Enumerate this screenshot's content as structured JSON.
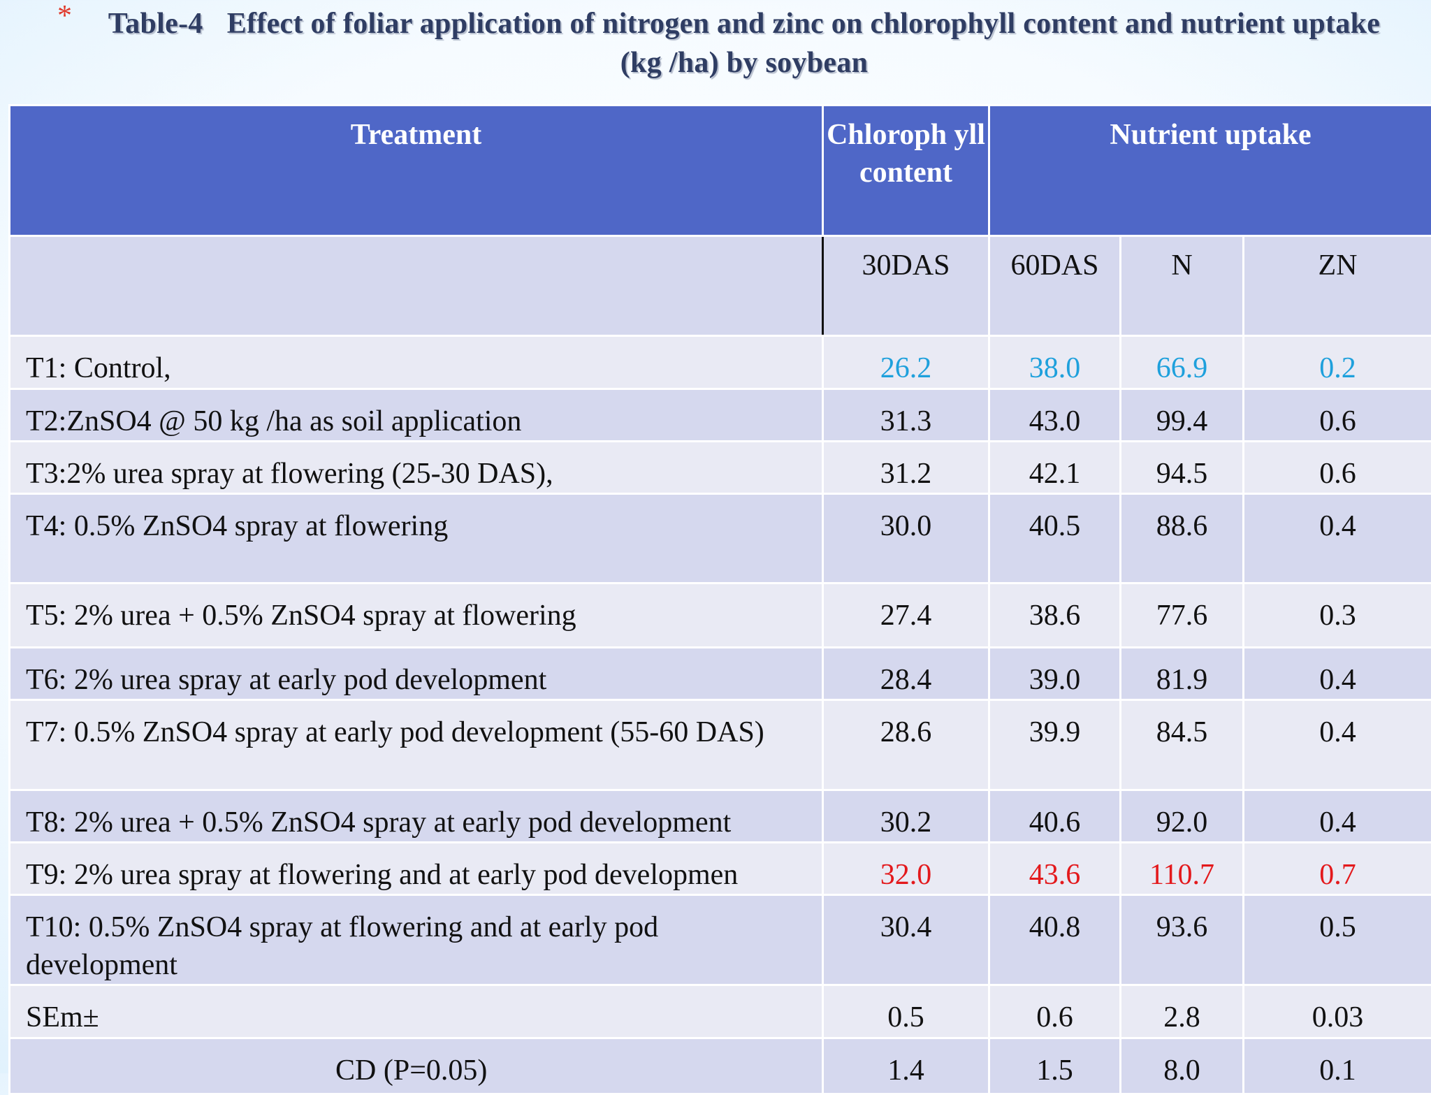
{
  "title": {
    "bullet": "*",
    "number": "Table-4",
    "text": "Effect of foliar application of nitrogen and zinc on chlorophyll content and nutrient uptake (kg /ha) by soybean"
  },
  "header": {
    "treatment": "Treatment",
    "chlorophyll": "Chloroph yll content",
    "nutrient_uptake": "Nutrient uptake",
    "sub": [
      "30DAS",
      "60DAS",
      "N",
      "ZN"
    ]
  },
  "rows": [
    {
      "treatment": "T1: Control,",
      "v": [
        "26.2",
        "38.0",
        "66.9",
        "0.2"
      ]
    },
    {
      "treatment": "T2:ZnSO4 @ 50 kg /ha as soil application",
      "v": [
        "31.3",
        "43.0",
        "99.4",
        "0.6"
      ]
    },
    {
      "treatment": "T3:2% urea spray at flowering (25-30 DAS),",
      "v": [
        "31.2",
        "42.1",
        "94.5",
        "0.6"
      ]
    },
    {
      "treatment": "T4: 0.5% ZnSO4 spray at flowering",
      "v": [
        "30.0",
        "40.5",
        "88.6",
        "0.4"
      ]
    },
    {
      "treatment": "T5: 2% urea + 0.5% ZnSO4 spray at flowering",
      "v": [
        "27.4",
        "38.6",
        "77.6",
        "0.3"
      ]
    },
    {
      "treatment": "T6: 2% urea spray at early pod development",
      "v": [
        "28.4",
        "39.0",
        "81.9",
        "0.4"
      ]
    },
    {
      "treatment": "T7: 0.5% ZnSO4 spray at early pod development (55-60 DAS)",
      "v": [
        "28.6",
        "39.9",
        "84.5",
        "0.4"
      ]
    },
    {
      "treatment": "T8: 2% urea + 0.5% ZnSO4 spray at early pod development",
      "v": [
        "30.2",
        "40.6",
        "92.0",
        "0.4"
      ]
    },
    {
      "treatment": "T9: 2% urea spray at flowering and at early pod developmen",
      "v": [
        "32.0",
        "43.6",
        "110.7",
        "0.7"
      ]
    },
    {
      "treatment": "T10: 0.5% ZnSO4 spray at flowering and at early pod development",
      "v": [
        "30.4",
        "40.8",
        "93.6",
        "0.5"
      ]
    },
    {
      "treatment": "SEm±",
      "v": [
        "0.5",
        "0.6",
        "2.8",
        "0.03"
      ]
    },
    {
      "treatment": "CD (P=0.05)",
      "v": [
        "1.4",
        "1.5",
        "8.0",
        "0.1"
      ]
    }
  ],
  "colors": {
    "header_bg": "#4f67c7",
    "row_light": "#e9eaf4",
    "row_dark": "#d5d8ee",
    "control_highlight": "#1ea0dc",
    "best_highlight": "#e3191c"
  }
}
